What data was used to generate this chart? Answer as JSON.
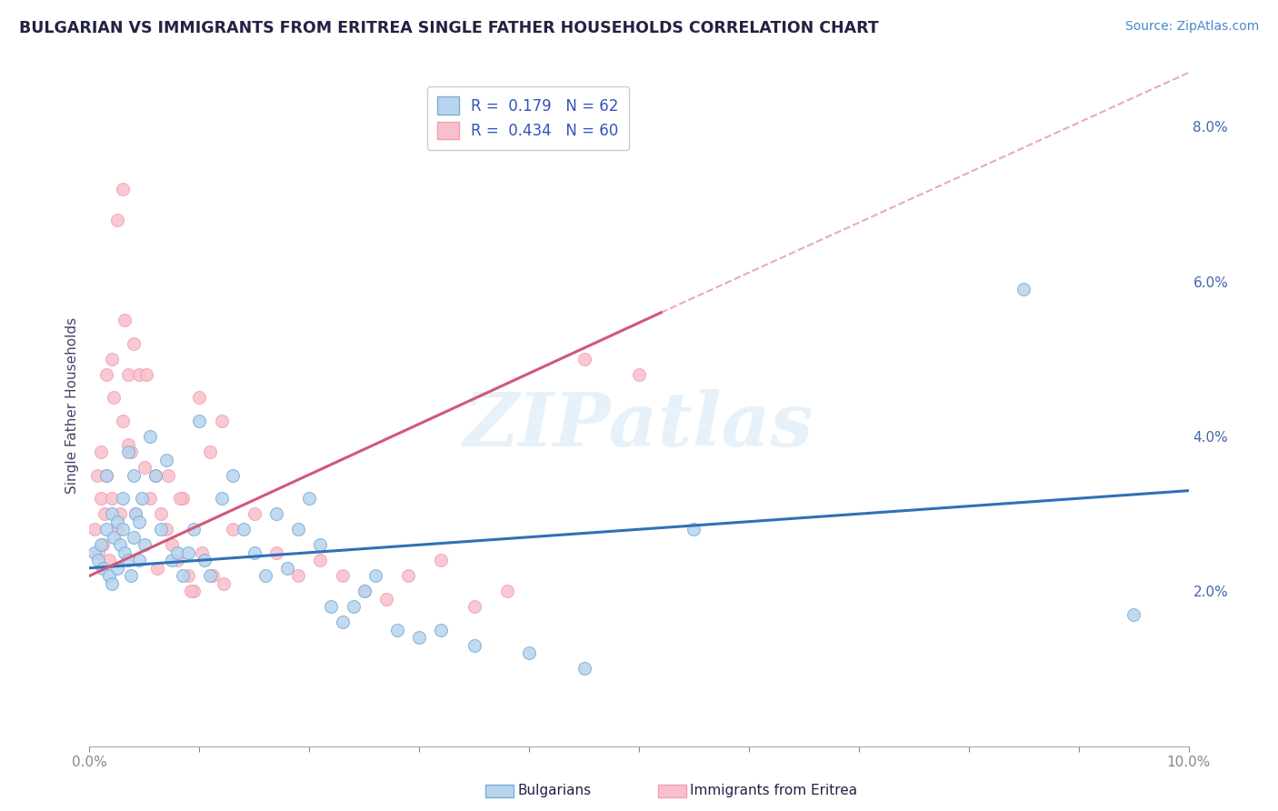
{
  "title": "BULGARIAN VS IMMIGRANTS FROM ERITREA SINGLE FATHER HOUSEHOLDS CORRELATION CHART",
  "source": "Source: ZipAtlas.com",
  "ylabel": "Single Father Households",
  "watermark": "ZIPatlas",
  "legend_blue_label": "Bulgarians",
  "legend_pink_label": "Immigrants from Eritrea",
  "R_blue": 0.179,
  "N_blue": 62,
  "R_pink": 0.434,
  "N_pink": 60,
  "blue_edge_color": "#7bafd4",
  "pink_edge_color": "#f4a0b0",
  "blue_line_color": "#3070b8",
  "pink_line_color": "#d05878",
  "blue_dot_fill": "#b8d4ee",
  "pink_dot_fill": "#f8c0cc",
  "bg_color": "#ffffff",
  "grid_color": "#c8d4e8",
  "xmin": 0.0,
  "xmax": 10.0,
  "ymin": 0.0,
  "ymax": 8.8,
  "yticks_right": [
    2.0,
    4.0,
    6.0,
    8.0
  ],
  "blue_scatter_x": [
    0.05,
    0.08,
    0.1,
    0.12,
    0.15,
    0.15,
    0.18,
    0.2,
    0.2,
    0.22,
    0.25,
    0.25,
    0.28,
    0.3,
    0.3,
    0.32,
    0.35,
    0.35,
    0.38,
    0.4,
    0.4,
    0.42,
    0.45,
    0.45,
    0.48,
    0.5,
    0.55,
    0.6,
    0.65,
    0.7,
    0.75,
    0.8,
    0.85,
    0.9,
    0.95,
    1.0,
    1.05,
    1.1,
    1.2,
    1.3,
    1.4,
    1.5,
    1.6,
    1.7,
    1.8,
    1.9,
    2.0,
    2.1,
    2.2,
    2.3,
    2.4,
    2.5,
    2.6,
    2.8,
    3.0,
    3.2,
    3.5,
    4.0,
    4.5,
    5.5,
    8.5,
    9.5
  ],
  "blue_scatter_y": [
    2.5,
    2.4,
    2.6,
    2.3,
    2.8,
    3.5,
    2.2,
    3.0,
    2.1,
    2.7,
    2.9,
    2.3,
    2.6,
    3.2,
    2.8,
    2.5,
    3.8,
    2.4,
    2.2,
    3.5,
    2.7,
    3.0,
    2.9,
    2.4,
    3.2,
    2.6,
    4.0,
    3.5,
    2.8,
    3.7,
    2.4,
    2.5,
    2.2,
    2.5,
    2.8,
    4.2,
    2.4,
    2.2,
    3.2,
    3.5,
    2.8,
    2.5,
    2.2,
    3.0,
    2.3,
    2.8,
    3.2,
    2.6,
    1.8,
    1.6,
    1.8,
    2.0,
    2.2,
    1.5,
    1.4,
    1.5,
    1.3,
    1.2,
    1.0,
    2.8,
    5.9,
    1.7
  ],
  "pink_scatter_x": [
    0.05,
    0.07,
    0.08,
    0.1,
    0.1,
    0.12,
    0.14,
    0.15,
    0.15,
    0.18,
    0.2,
    0.2,
    0.22,
    0.25,
    0.25,
    0.28,
    0.3,
    0.3,
    0.32,
    0.35,
    0.38,
    0.4,
    0.45,
    0.5,
    0.55,
    0.6,
    0.65,
    0.7,
    0.75,
    0.8,
    0.85,
    0.9,
    0.95,
    1.0,
    1.1,
    1.2,
    1.3,
    1.5,
    1.7,
    1.9,
    2.1,
    2.3,
    2.5,
    2.7,
    2.9,
    3.2,
    3.5,
    3.8,
    4.5,
    5.0,
    0.35,
    0.42,
    0.52,
    0.62,
    0.72,
    0.82,
    0.92,
    1.02,
    1.12,
    1.22
  ],
  "pink_scatter_y": [
    2.8,
    3.5,
    2.5,
    3.8,
    3.2,
    2.6,
    3.0,
    4.8,
    3.5,
    2.4,
    5.0,
    3.2,
    4.5,
    2.8,
    6.8,
    3.0,
    4.2,
    7.2,
    5.5,
    4.8,
    3.8,
    5.2,
    4.8,
    3.6,
    3.2,
    3.5,
    3.0,
    2.8,
    2.6,
    2.4,
    3.2,
    2.2,
    2.0,
    4.5,
    3.8,
    4.2,
    2.8,
    3.0,
    2.5,
    2.2,
    2.4,
    2.2,
    2.0,
    1.9,
    2.2,
    2.4,
    1.8,
    2.0,
    5.0,
    4.8,
    3.9,
    3.0,
    4.8,
    2.3,
    3.5,
    3.2,
    2.0,
    2.5,
    2.2,
    2.1
  ],
  "blue_trend_x0": 0.0,
  "blue_trend_x1": 10.0,
  "blue_trend_y0": 2.3,
  "blue_trend_y1": 3.3,
  "pink_trend_x0": 0.0,
  "pink_trend_x1": 5.2,
  "pink_trend_y0": 2.2,
  "pink_trend_y1": 5.6,
  "pink_dash_x0": 5.2,
  "pink_dash_x1": 10.0,
  "pink_dash_y0": 5.6,
  "pink_dash_y1": 8.7
}
